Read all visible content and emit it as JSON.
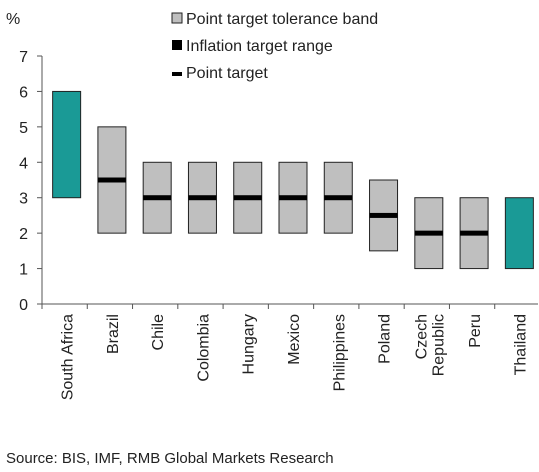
{
  "chart_data": {
    "type": "bar",
    "ylabel": "%",
    "ylim": [
      0,
      7
    ],
    "yticks": [
      0,
      1,
      2,
      3,
      4,
      5,
      6,
      7
    ],
    "categories": [
      "South Africa",
      "Brazil",
      "Chile",
      "Colombia",
      "Hungary",
      "Mexico",
      "Philippines",
      "Poland",
      "Czech Republic",
      "Peru",
      "Thailand"
    ],
    "category_lines": [
      [
        "South Africa"
      ],
      [
        "Brazil"
      ],
      [
        "Chile"
      ],
      [
        "Colombia"
      ],
      [
        "Hungary"
      ],
      [
        "Mexico"
      ],
      [
        "Philippines"
      ],
      [
        "Poland"
      ],
      [
        "Czech",
        "Republic"
      ],
      [
        "Peru"
      ],
      [
        "Thailand"
      ]
    ],
    "series": [
      {
        "name": "Point target tolerance band",
        "color": "#bfbfbf",
        "values": [
          null,
          [
            2,
            5
          ],
          [
            2,
            4
          ],
          [
            2,
            4
          ],
          [
            2,
            4
          ],
          [
            2,
            4
          ],
          [
            2,
            4
          ],
          [
            1.5,
            3.5
          ],
          [
            1,
            3
          ],
          [
            1,
            3
          ],
          null
        ]
      },
      {
        "name": "Inflation target range",
        "color": "#1a9a96",
        "values": [
          [
            3,
            6
          ],
          null,
          null,
          null,
          null,
          null,
          null,
          null,
          null,
          null,
          [
            1,
            3
          ]
        ]
      },
      {
        "name": "Point target",
        "color": "#000000",
        "values": [
          null,
          3.5,
          3,
          3,
          3,
          3,
          3,
          2.5,
          2,
          2,
          null
        ]
      }
    ],
    "legend": [
      {
        "label": "Point target tolerance band",
        "swatch": "grey-box"
      },
      {
        "label": "Inflation target range",
        "swatch": "black-box"
      },
      {
        "label": "Point target",
        "swatch": "dash"
      }
    ],
    "legend_position": "top",
    "grid": false
  },
  "footer": {
    "source": "Source: BIS, IMF, RMB Global Markets Research"
  }
}
